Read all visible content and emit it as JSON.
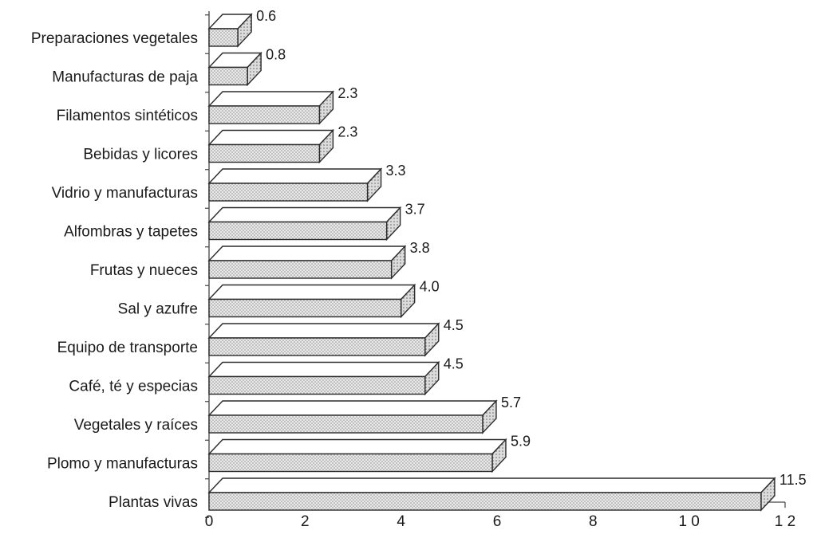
{
  "chart_data": {
    "type": "bar",
    "orientation": "horizontal",
    "style": "3d-dotted",
    "categories": [
      "Preparaciones vegetales",
      "Manufacturas de paja",
      "Filamentos sintéticos",
      "Bebidas y licores",
      "Vidrio y manufacturas",
      "Alfombras y tapetes",
      "Frutas y nueces",
      "Sal y azufre",
      "Equipo de transporte",
      "Café, té y especias",
      "Vegetales y raíces",
      "Plomo y manufacturas",
      "Plantas vivas"
    ],
    "values": [
      0.6,
      0.8,
      2.3,
      2.3,
      3.3,
      3.7,
      3.8,
      4.0,
      4.5,
      4.5,
      5.7,
      5.9,
      11.5
    ],
    "value_labels": [
      "0.6",
      "0.8",
      "2.3",
      "2.3",
      "3.3",
      "3.7",
      "3.8",
      "4.0",
      "4.5",
      "4.5",
      "5.7",
      "5.9",
      "11.5"
    ],
    "xlim": [
      0,
      12
    ],
    "xticks": [
      0,
      2,
      4,
      6,
      8,
      10,
      12
    ],
    "xtick_labels": [
      "0",
      "2",
      "4",
      "6",
      "8",
      "1 0",
      "1 2"
    ],
    "title": "",
    "xlabel": "",
    "ylabel": "",
    "grid": false,
    "legend": "none",
    "colors": {
      "bar_fill": "#e9e9e9",
      "bar_top": "#ffffff",
      "bar_side": "#d2d2d2",
      "dots": "#8a8a8a",
      "outline": "#2b2b2b",
      "axis": "#444444"
    }
  }
}
